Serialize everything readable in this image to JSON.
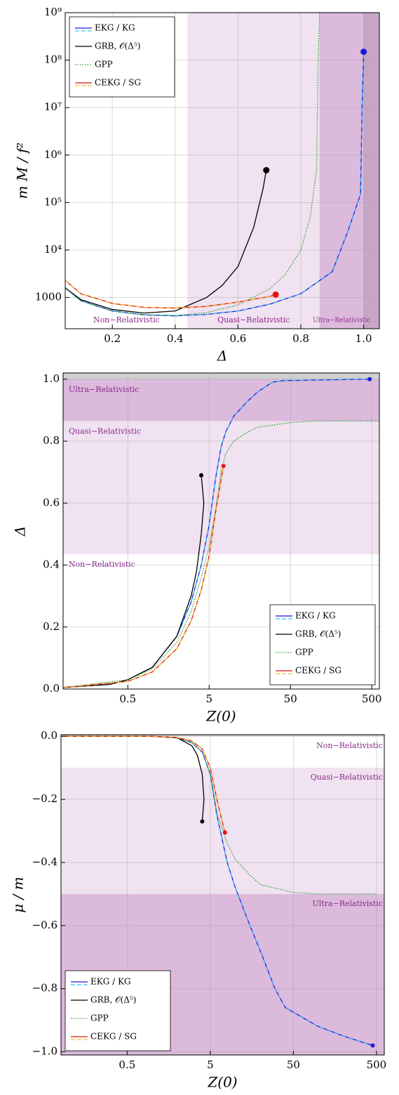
{
  "chart_data": [
    {
      "type": "line",
      "xlabel": "Δ",
      "ylabel": "m M / f²",
      "xlog": false,
      "ylog": true,
      "grid": true,
      "legend": "upper left",
      "xlim": [
        0.05,
        1.05
      ],
      "ylim": [
        220,
        1000000000
      ],
      "xticks": [
        0.2,
        0.4,
        0.6,
        0.8,
        {
          "value": 1,
          "label": "1.0"
        }
      ],
      "yticks": [
        1000,
        {
          "value": 10000,
          "label": "10⁴"
        },
        {
          "value": 100000,
          "label": "10⁵"
        },
        {
          "value": 1000000,
          "label": "10⁶"
        },
        {
          "value": 10000000,
          "label": "10⁷"
        },
        {
          "value": 100000000,
          "label": "10⁸"
        },
        {
          "value": 1000000000,
          "label": "10⁹"
        }
      ],
      "regions": [
        {
          "name": "Non−Relativistic",
          "axis": "x",
          "range": [
            0,
            0.44
          ],
          "color": "#ffffff"
        },
        {
          "name": "Quasi−Relativistic",
          "axis": "x",
          "range": [
            0.44,
            0.86
          ],
          "color": "#f0e2f0"
        },
        {
          "name": "Ultra−Relativistic",
          "axis": "x",
          "range": [
            0.86,
            1.0
          ],
          "color": "#dcbadc"
        }
      ],
      "series": [
        {
          "name": "EKG / KG",
          "color": "#1a1adc",
          "overlay_color": "#2ec8f0",
          "style": "solid",
          "end_marker": true,
          "x": [
            0.05,
            0.1,
            0.2,
            0.3,
            0.4,
            0.5,
            0.6,
            0.7,
            0.8,
            0.9,
            0.95,
            0.99,
            0.995,
            1.0
          ],
          "values": [
            1600,
            850,
            520,
            430,
            410,
            440,
            520,
            720,
            1200,
            3500,
            25000,
            150000,
            10000000,
            150000000
          ]
        },
        {
          "name": "GRB, 𝒪(Δ⁵)",
          "color": "#000000",
          "style": "solid",
          "end_marker": true,
          "x": [
            0.05,
            0.1,
            0.2,
            0.3,
            0.4,
            0.5,
            0.55,
            0.6,
            0.65,
            0.68,
            0.69
          ],
          "values": [
            1600,
            900,
            560,
            470,
            520,
            1000,
            1800,
            4500,
            30000,
            200000,
            480000
          ]
        },
        {
          "name": "GPP",
          "color": "#2a9a2a",
          "style": "dotted",
          "end_marker": false,
          "x": [
            0.05,
            0.1,
            0.2,
            0.3,
            0.4,
            0.5,
            0.6,
            0.7,
            0.75,
            0.8,
            0.83,
            0.85,
            0.855,
            0.86
          ],
          "values": [
            1600,
            850,
            520,
            430,
            420,
            480,
            700,
            1500,
            3000,
            10000,
            50000,
            500000,
            100000000,
            1000000000
          ]
        },
        {
          "name": "CEKG / SG",
          "color": "#e81010",
          "overlay_color": "#f0c020",
          "style": "solid",
          "end_marker": true,
          "x": [
            0.05,
            0.1,
            0.2,
            0.3,
            0.4,
            0.5,
            0.6,
            0.7,
            0.72
          ],
          "values": [
            2300,
            1200,
            750,
            620,
            600,
            650,
            800,
            1050,
            1150
          ]
        }
      ]
    },
    {
      "type": "line",
      "xlabel": "Z(0)",
      "ylabel": "Δ",
      "xlog": true,
      "ylog": false,
      "grid": true,
      "legend": "lower right",
      "xlim": [
        0.08,
        620
      ],
      "ylim": [
        0,
        1.02
      ],
      "xticks": [
        0.5,
        5,
        50,
        500
      ],
      "yticks": [
        {
          "value": 0,
          "label": "0.0"
        },
        0.2,
        0.4,
        0.6,
        0.8,
        {
          "value": 1,
          "label": "1.0"
        }
      ],
      "regions": [
        {
          "name": "Non−Relativistic",
          "axis": "y",
          "range": [
            0,
            0.435
          ],
          "color": "#ffffff"
        },
        {
          "name": "Quasi−Relativistic",
          "axis": "y",
          "range": [
            0.435,
            0.865
          ],
          "color": "#f0e2f0"
        },
        {
          "name": "Ultra−Relativistic",
          "axis": "y",
          "range": [
            0.865,
            1.0
          ],
          "color": "#dcbadc"
        }
      ],
      "series": [
        {
          "name": "EKG / KG",
          "color": "#1a1adc",
          "overlay_color": "#2ec8f0",
          "style": "solid",
          "end_marker": true,
          "x": [
            0.08,
            0.3,
            0.5,
            1,
            2,
            3,
            4,
            5,
            6,
            7,
            8,
            10,
            15,
            20,
            30,
            40,
            100,
            470
          ],
          "values": [
            0.005,
            0.015,
            0.03,
            0.07,
            0.17,
            0.28,
            0.4,
            0.53,
            0.68,
            0.78,
            0.83,
            0.88,
            0.93,
            0.96,
            0.99,
            0.995,
            0.997,
            1.0
          ]
        },
        {
          "name": "GRB, 𝒪(Δ⁵)",
          "color": "#000000",
          "style": "solid",
          "end_marker": true,
          "x": [
            0.08,
            0.3,
            0.5,
            1,
            2,
            3,
            3.5,
            4,
            4.3,
            4
          ],
          "values": [
            0.005,
            0.015,
            0.03,
            0.07,
            0.17,
            0.3,
            0.38,
            0.5,
            0.6,
            0.69
          ]
        },
        {
          "name": "GPP",
          "color": "#2a9a2a",
          "style": "dotted",
          "end_marker": false,
          "x": [
            0.08,
            0.5,
            1,
            2,
            3,
            4,
            5,
            6,
            7,
            8,
            10,
            15,
            20,
            50,
            100,
            620
          ],
          "values": [
            0.005,
            0.03,
            0.065,
            0.15,
            0.25,
            0.36,
            0.46,
            0.58,
            0.7,
            0.76,
            0.8,
            0.83,
            0.845,
            0.86,
            0.865,
            0.865
          ]
        },
        {
          "name": "CEKG / SG",
          "color": "#e81010",
          "overlay_color": "#f0c020",
          "style": "solid",
          "end_marker": true,
          "x": [
            0.08,
            0.5,
            1,
            2,
            3,
            4,
            5,
            6,
            7.5
          ],
          "values": [
            0.004,
            0.025,
            0.055,
            0.13,
            0.22,
            0.32,
            0.43,
            0.57,
            0.72
          ]
        }
      ]
    },
    {
      "type": "line",
      "xlabel": "Z(0)",
      "ylabel": "μ / m",
      "xlog": true,
      "ylog": false,
      "grid": true,
      "legend": "lower left",
      "xlim": [
        0.08,
        620
      ],
      "ylim": [
        -1.01,
        0.005
      ],
      "xticks": [
        0.5,
        5,
        50,
        500
      ],
      "yticks": [
        {
          "value": 0,
          "label": "0.0"
        },
        {
          "value": -0.2,
          "label": "−0.2"
        },
        {
          "value": -0.4,
          "label": "−0.4"
        },
        {
          "value": -0.6,
          "label": "−0.6"
        },
        {
          "value": -0.8,
          "label": "−0.8"
        },
        {
          "value": -1,
          "label": "−1.0"
        }
      ],
      "regions": [
        {
          "name": "Non−Relativistic",
          "axis": "y",
          "range": [
            -0.1,
            0
          ],
          "color": "#ffffff"
        },
        {
          "name": "Quasi−Relativistic",
          "axis": "y",
          "range": [
            -0.5,
            -0.1
          ],
          "color": "#f0e2f0"
        },
        {
          "name": "Ultra−Relativistic",
          "axis": "y",
          "range": [
            -1.01,
            -0.5
          ],
          "color": "#dcbadc"
        }
      ],
      "series": [
        {
          "name": "EKG / KG",
          "color": "#1a1adc",
          "overlay_color": "#2ec8f0",
          "style": "solid",
          "end_marker": true,
          "x": [
            0.08,
            1,
            2,
            3,
            4,
            5,
            6,
            8,
            10,
            15,
            20,
            30,
            40,
            100,
            200,
            450
          ],
          "values": [
            0,
            0,
            -0.005,
            -0.02,
            -0.05,
            -0.12,
            -0.25,
            -0.4,
            -0.48,
            -0.6,
            -0.68,
            -0.8,
            -0.86,
            -0.92,
            -0.95,
            -0.98
          ]
        },
        {
          "name": "GRB, 𝒪(Δ⁵)",
          "color": "#000000",
          "style": "solid",
          "end_marker": true,
          "x": [
            0.08,
            1,
            2,
            3,
            3.5,
            4,
            4.2,
            4
          ],
          "values": [
            0,
            0,
            -0.005,
            -0.03,
            -0.06,
            -0.12,
            -0.2,
            -0.27
          ]
        },
        {
          "name": "GPP",
          "color": "#2a9a2a",
          "style": "dotted",
          "end_marker": false,
          "x": [
            0.08,
            1,
            2,
            3,
            4,
            5,
            6,
            8,
            10,
            15,
            20,
            50,
            100,
            500
          ],
          "values": [
            0,
            0,
            -0.005,
            -0.02,
            -0.05,
            -0.12,
            -0.24,
            -0.34,
            -0.39,
            -0.44,
            -0.47,
            -0.495,
            -0.5,
            -0.5
          ]
        },
        {
          "name": "CEKG / SG",
          "color": "#e81010",
          "overlay_color": "#f0c020",
          "style": "solid",
          "end_marker": true,
          "x": [
            0.08,
            1,
            2,
            3,
            4,
            5,
            6,
            7.5
          ],
          "values": [
            0,
            0,
            -0.004,
            -0.015,
            -0.04,
            -0.1,
            -0.2,
            -0.305
          ]
        }
      ]
    }
  ]
}
